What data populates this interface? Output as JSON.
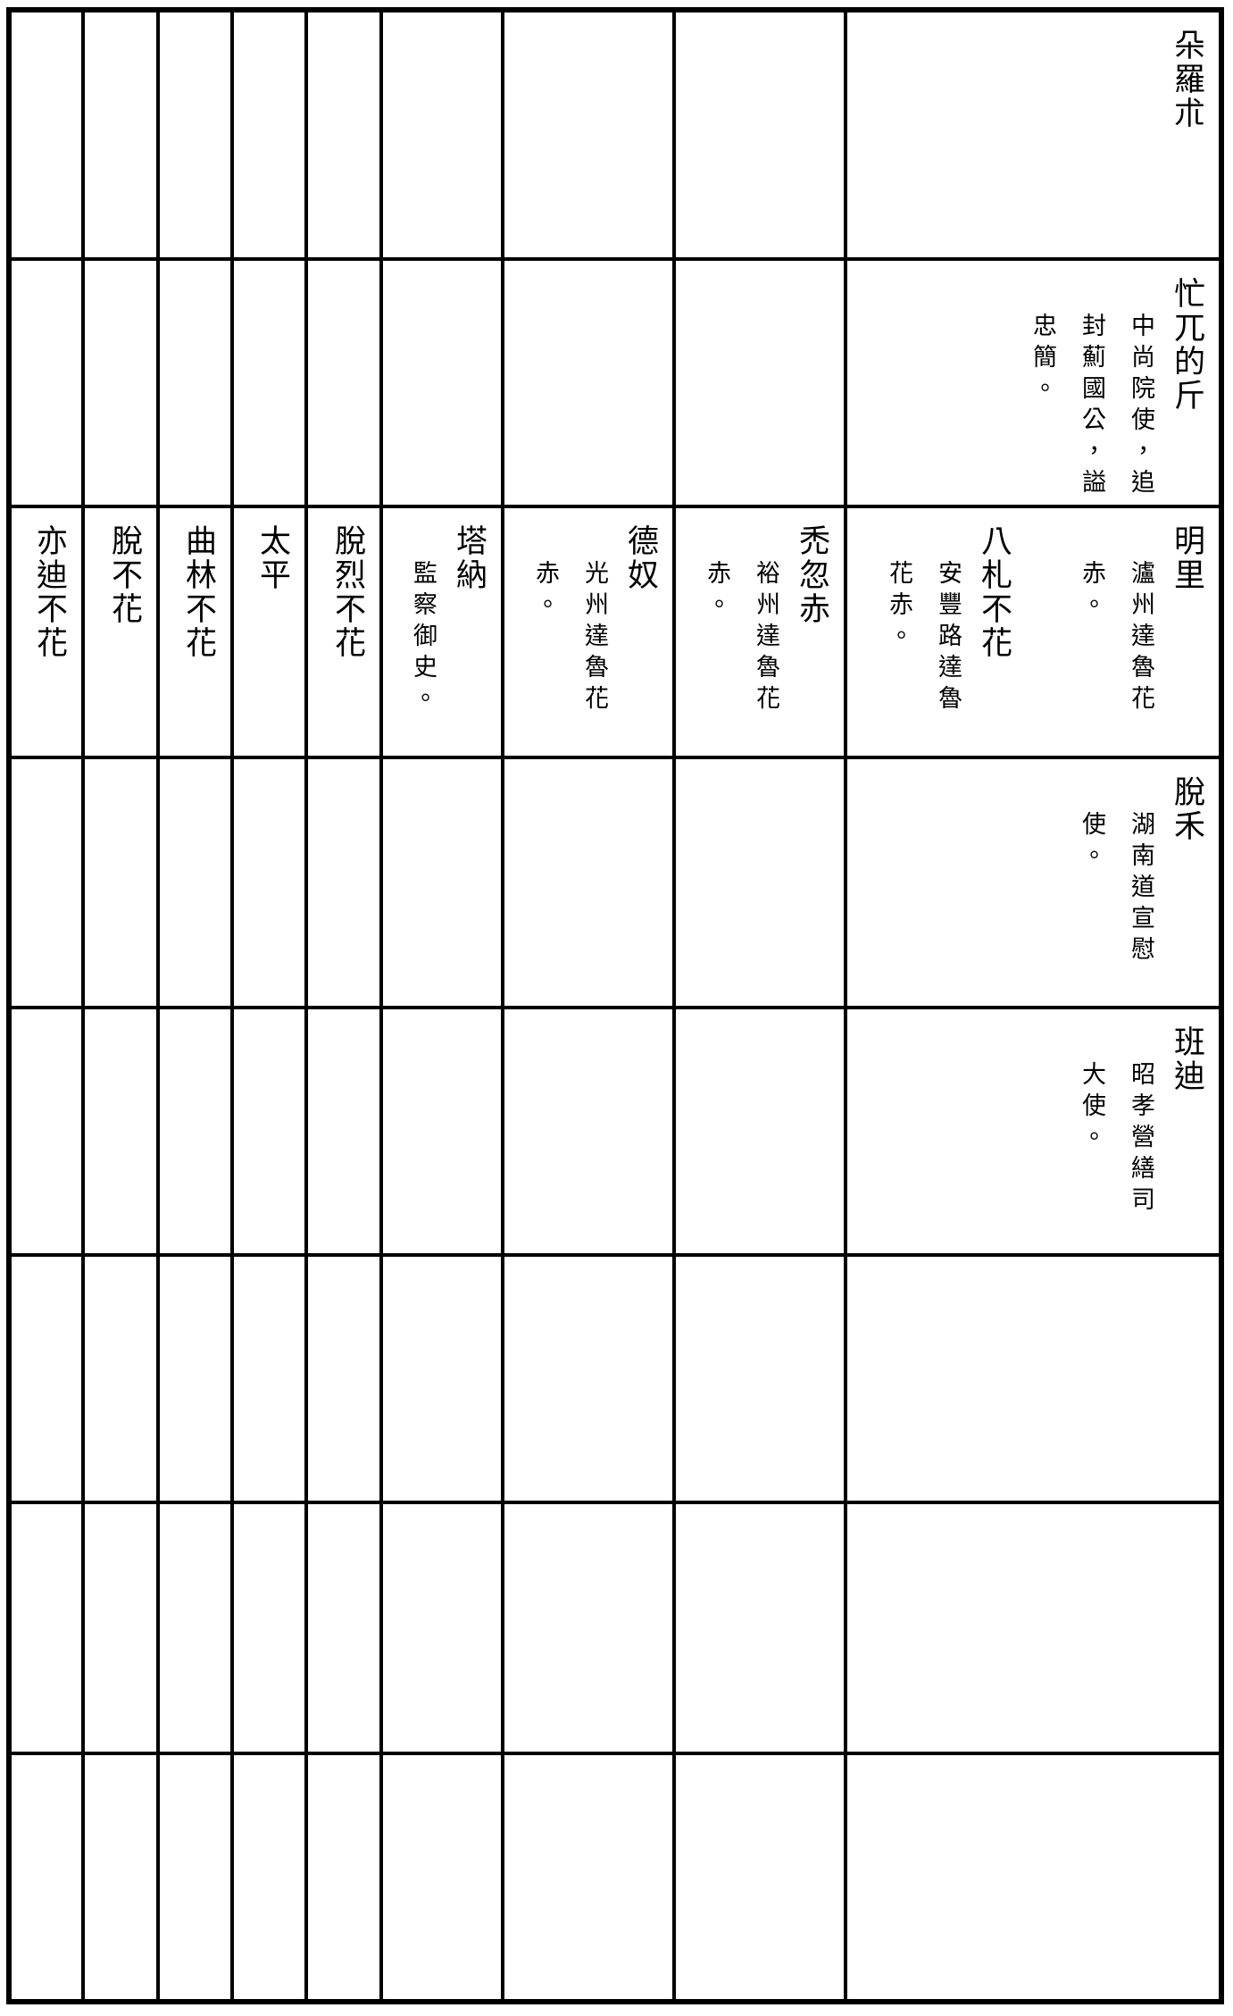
{
  "colors": {
    "ink": "#000000",
    "paper": "#ffffff"
  },
  "table": {
    "kind": "genealogy-grid",
    "rows": 8,
    "columns": 9,
    "people": {
      "duoluozhu": {
        "name": "朵羅朮",
        "note_lines": [],
        "row": 1,
        "column": 9
      },
      "mangwudijin": {
        "name": "忙兀的斤",
        "note_lines": [
          "中尚院使，追",
          "封薊國公，謚",
          "忠簡。"
        ],
        "row": 2,
        "column": 9
      },
      "mingli": {
        "name": "明里",
        "note_lines": [
          "瀘州達魯花",
          "赤。"
        ],
        "row": 3,
        "column": 9
      },
      "bazhabuhua": {
        "name": "八札不花",
        "note_lines": [
          "安豐路達魯",
          "花赤。"
        ],
        "row": 3,
        "column": 9
      },
      "tuhuchi": {
        "name": "禿忽赤",
        "note_lines": [
          "裕州達魯花",
          "赤。"
        ],
        "row": 3,
        "column": 8
      },
      "denu": {
        "name": "德奴",
        "note_lines": [
          "光州達魯花",
          "赤。"
        ],
        "row": 3,
        "column": 7
      },
      "tana": {
        "name": "塔納",
        "note_lines": [
          "監察御史。"
        ],
        "row": 3,
        "column": 6
      },
      "tuoliebuhua": {
        "name": "脫烈不花",
        "note_lines": [],
        "row": 3,
        "column": 5
      },
      "taiping": {
        "name": "太平",
        "note_lines": [],
        "row": 3,
        "column": 4
      },
      "qulinbuhua": {
        "name": "曲林不花",
        "note_lines": [],
        "row": 3,
        "column": 3
      },
      "tuobuhua": {
        "name": "脫不花",
        "note_lines": [],
        "row": 3,
        "column": 2
      },
      "yidibuhua": {
        "name": "亦迪不花",
        "note_lines": [],
        "row": 3,
        "column": 1
      },
      "tuohe": {
        "name": "脫禾",
        "note_lines": [
          "湖南道宣慰",
          "使。"
        ],
        "row": 4,
        "column": 9
      },
      "bandi": {
        "name": "班迪",
        "note_lines": [
          "昭孝營繕司",
          "大使。"
        ],
        "row": 5,
        "column": 9
      }
    }
  }
}
